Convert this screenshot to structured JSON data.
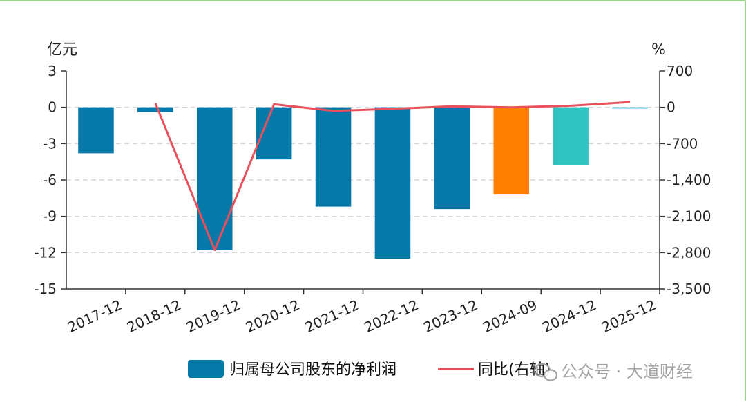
{
  "chart_data": {
    "type": "bar",
    "categories": [
      "2017-12",
      "2018-12",
      "2019-12",
      "2020-12",
      "2021-12",
      "2022-12",
      "2023-12",
      "2024-09",
      "2024-12",
      "2025-12"
    ],
    "series": [
      {
        "name": "归属母公司股东的净利润",
        "kind": "bar",
        "axis": "left",
        "values": [
          -3.8,
          -0.4,
          -11.8,
          -4.3,
          -8.2,
          -12.5,
          -8.4,
          -7.2,
          -4.8,
          -0.1
        ],
        "colors": [
          "#0779a8",
          "#0779a8",
          "#0779a8",
          "#0779a8",
          "#0779a8",
          "#0779a8",
          "#0779a8",
          "#ff8000",
          "#30c4c0",
          "#30c4c0"
        ]
      },
      {
        "name": "同比(右轴)",
        "kind": "line",
        "axis": "right",
        "color": "#e8505b",
        "values": [
          null,
          80,
          -2750,
          60,
          -70,
          -30,
          20,
          0,
          30,
          100
        ]
      }
    ],
    "left_axis": {
      "unit": "亿元",
      "ylim": [
        -15,
        3
      ],
      "ticks": [
        "3",
        "0",
        "-3",
        "-6",
        "-9",
        "-12",
        "-15"
      ]
    },
    "right_axis": {
      "unit": "%",
      "ylim": [
        -3500,
        700
      ],
      "ticks": [
        "700",
        "0",
        "-700",
        "-1,400",
        "-2,100",
        "-2,800",
        "-3,500"
      ]
    },
    "grid": true,
    "legend_position": "bottom"
  },
  "watermark": "公众号 · 大道财经",
  "watermark_icon": "wechat-icon"
}
